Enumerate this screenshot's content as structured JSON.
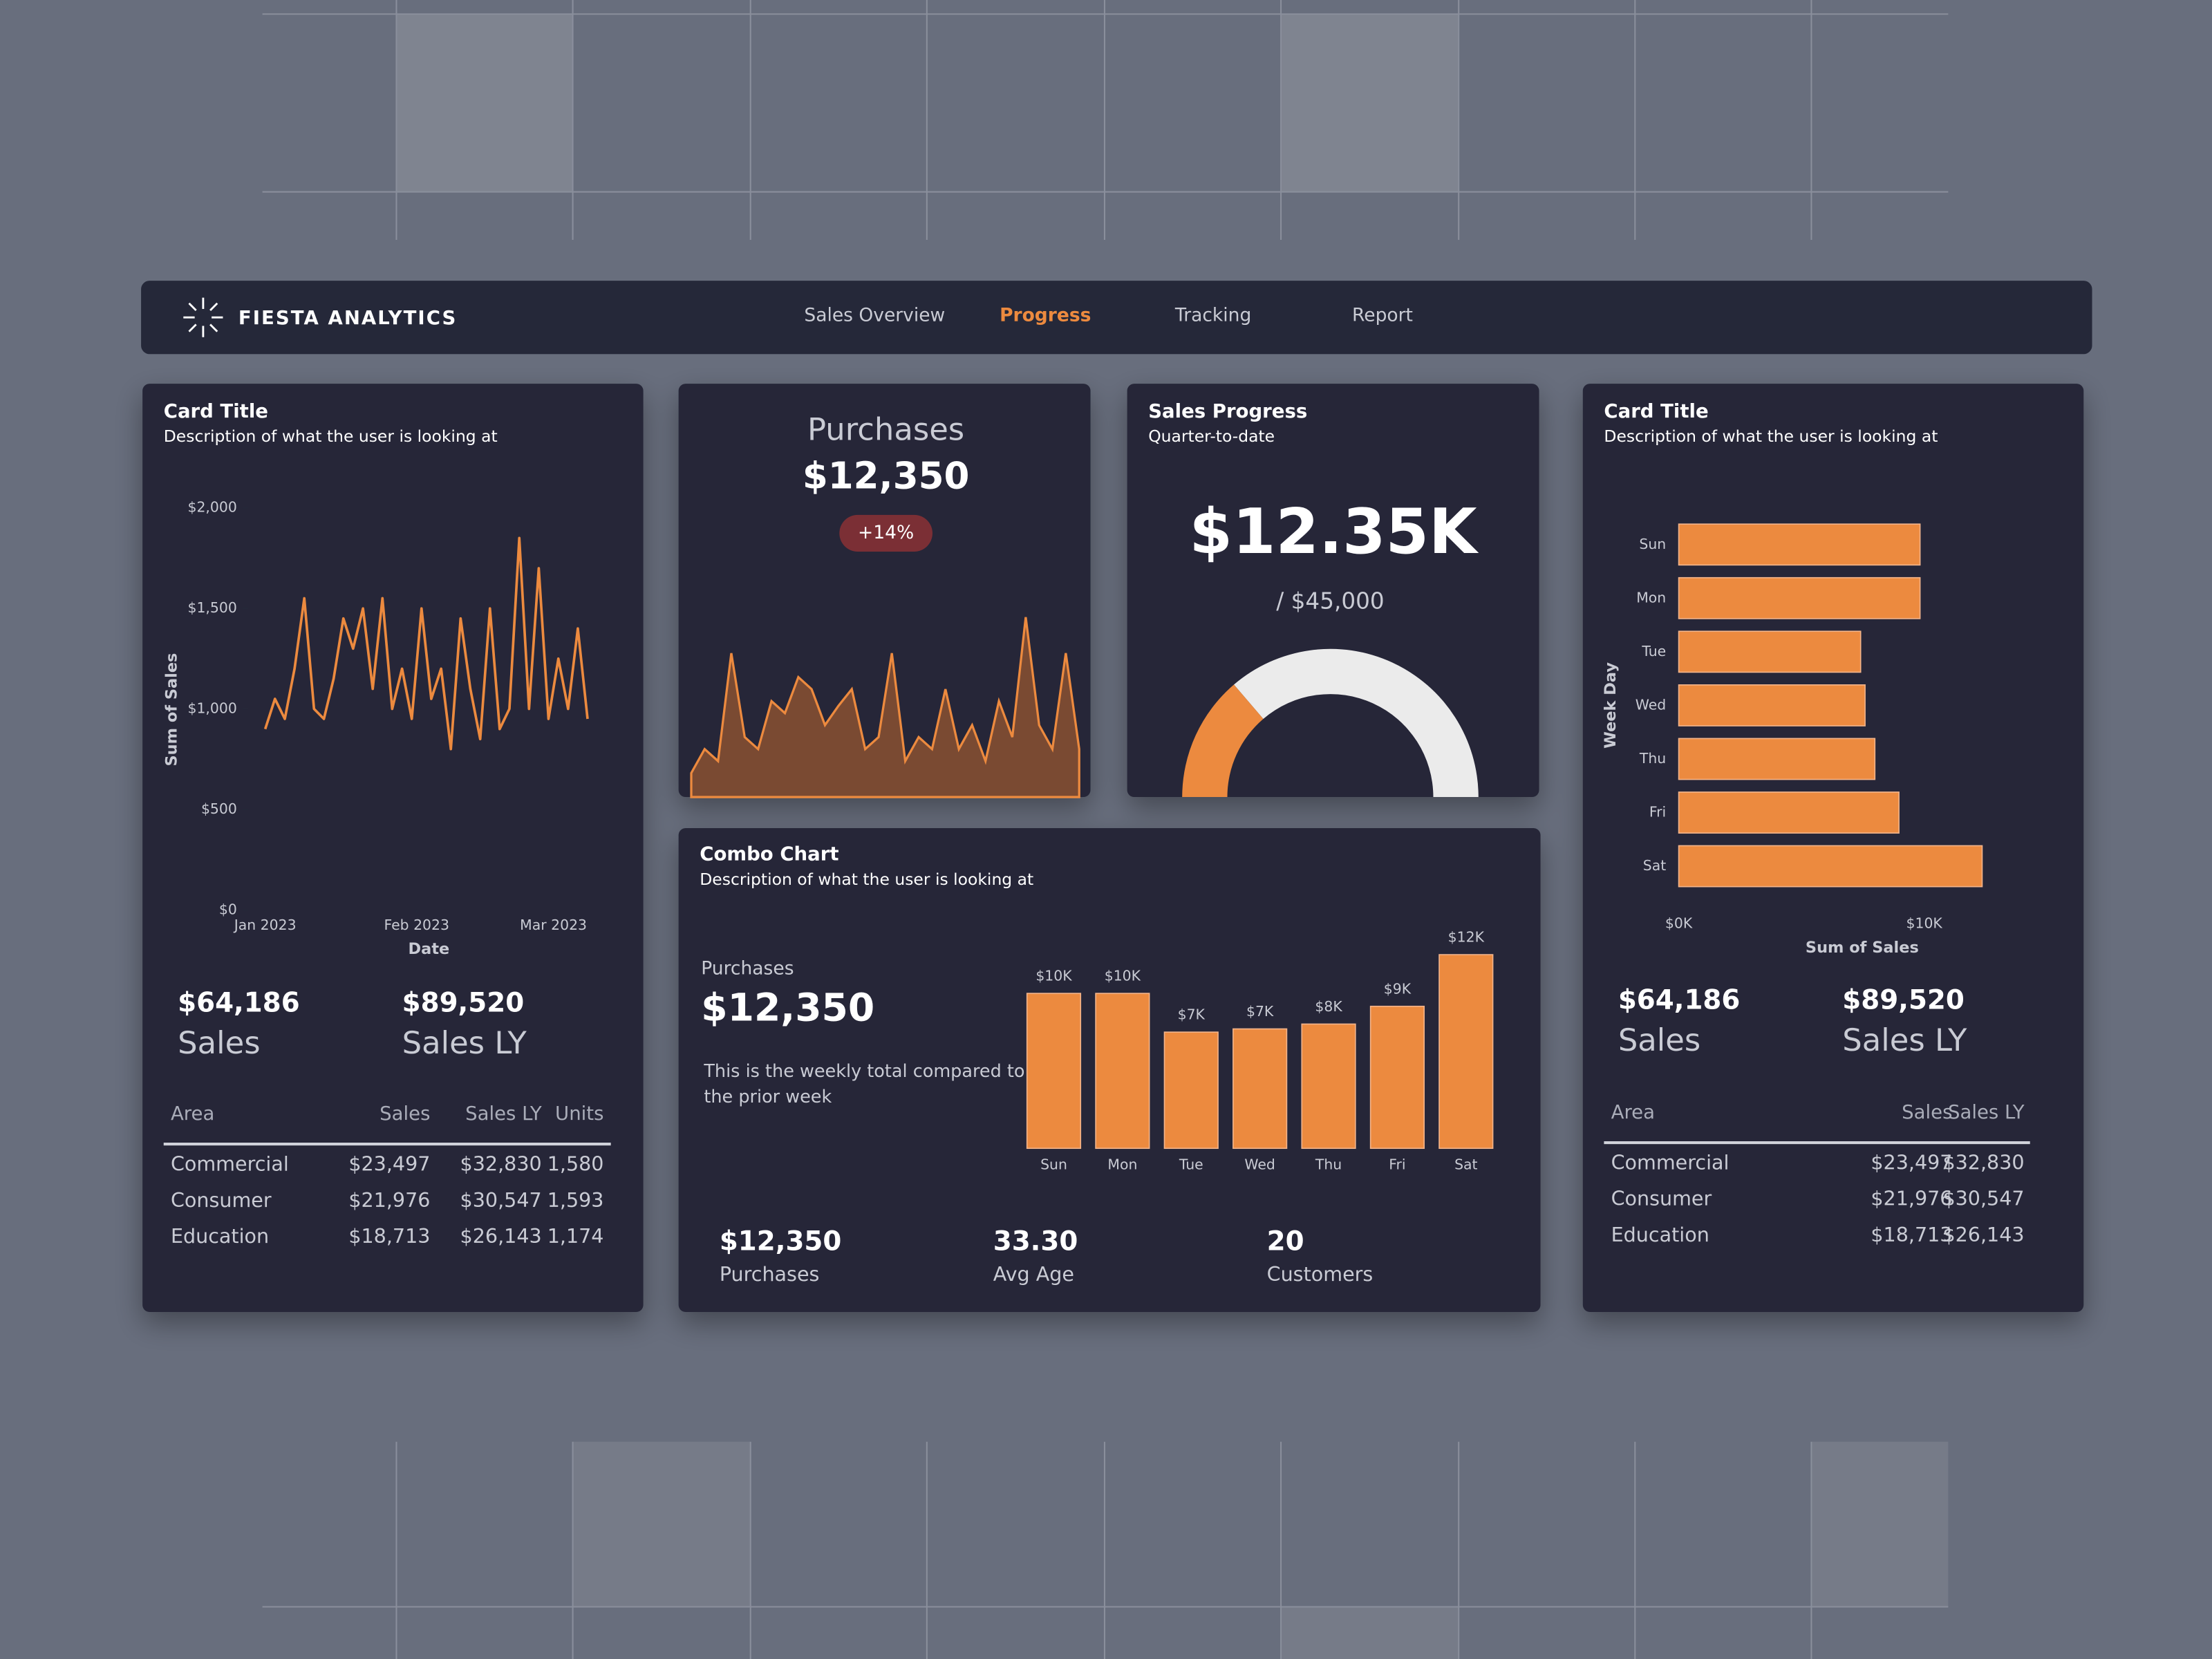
{
  "nav": {
    "brand": "FIESTA ANALYTICS",
    "items": [
      "Sales Overview",
      "Progress",
      "Tracking",
      "Report"
    ],
    "active": 1
  },
  "sales_card": {
    "title": "Card Title",
    "description": "Description of what the user is looking at",
    "chart_data": {
      "type": "line",
      "x_label": "Date",
      "y_label": "Sum of Sales",
      "color": "#ec8a3f",
      "x": [
        0,
        2,
        4,
        6,
        8,
        10,
        12,
        14,
        16,
        18,
        20,
        22,
        24,
        26,
        28,
        30,
        32,
        34,
        36,
        38,
        40,
        42,
        44,
        46,
        48,
        50,
        52,
        54,
        56,
        58,
        60,
        62,
        64,
        66
      ],
      "values": [
        900,
        1050,
        950,
        1200,
        1550,
        1000,
        950,
        1150,
        1450,
        1300,
        1500,
        1100,
        1550,
        1000,
        1200,
        950,
        1500,
        1050,
        1200,
        800,
        1450,
        1100,
        850,
        1500,
        900,
        1000,
        1850,
        1000,
        1700,
        950,
        1250,
        1000,
        1400,
        950
      ],
      "xlim": [
        0,
        67
      ],
      "xticks": [
        {
          "value": 0,
          "label": "Jan 2023"
        },
        {
          "value": 31,
          "label": "Feb 2023"
        },
        {
          "value": 59,
          "label": "Mar 2023"
        }
      ],
      "ylim": [
        0,
        2000
      ],
      "yticks": [
        {
          "value": 0,
          "label": "$0"
        },
        {
          "value": 500,
          "label": "$500"
        },
        {
          "value": 1000,
          "label": "$1,000"
        },
        {
          "value": 1500,
          "label": "$1,500"
        },
        {
          "value": 2000,
          "label": "$2,000"
        }
      ]
    },
    "kpis": [
      {
        "value": "$64,186",
        "label": "Sales"
      },
      {
        "value": "$89,520",
        "label": "Sales LY"
      }
    ],
    "table": {
      "columns": [
        "Area",
        "Sales",
        "Sales LY",
        "Units"
      ],
      "rows": [
        [
          "Commercial",
          "$23,497",
          "$32,830",
          "1,580"
        ],
        [
          "Consumer",
          "$21,976",
          "$30,547",
          "1,593"
        ],
        [
          "Education",
          "$18,713",
          "$26,143",
          "1,174"
        ]
      ]
    }
  },
  "purchases_card": {
    "title": "Purchases",
    "value": "$12,350",
    "badge": "+14%",
    "chart_data": {
      "type": "area",
      "color": "#ec8a3f",
      "ylim": [
        0,
        100
      ],
      "values": [
        10,
        20,
        15,
        60,
        25,
        20,
        40,
        35,
        50,
        45,
        30,
        38,
        45,
        20,
        25,
        60,
        15,
        25,
        20,
        45,
        20,
        30,
        15,
        40,
        25,
        75,
        30,
        20,
        60,
        20
      ]
    }
  },
  "progress_card": {
    "title": "Sales Progress",
    "subtitle": "Quarter-to-date",
    "chart_data": {
      "type": "gauge",
      "value": 12350,
      "value_label": "$12.35K",
      "max": 45000,
      "max_label": "/ $45,000",
      "color": "#ec8a3f",
      "track_color": "#ebebeb"
    }
  },
  "combo_card": {
    "title": "Combo Chart",
    "description": "Description of what the user is looking at",
    "metric": "Purchases",
    "value": "$12,350",
    "note": "This is the weekly total compared to the prior week",
    "chart_data": {
      "type": "bar",
      "color": "#ec8a3f",
      "categories": [
        "Sun",
        "Mon",
        "Tue",
        "Wed",
        "Thu",
        "Fri",
        "Sat"
      ],
      "values": [
        9600,
        9600,
        7200,
        7400,
        7700,
        8800,
        12000
      ],
      "value_labels": [
        "$10K",
        "$10K",
        "$7K",
        "$7K",
        "$8K",
        "$9K",
        "$12K"
      ],
      "ylim": [
        0,
        12500
      ]
    },
    "stats": [
      {
        "value": "$12,350",
        "label": "Purchases"
      },
      {
        "value": "33.30",
        "label": "Avg Age"
      },
      {
        "value": "20",
        "label": "Customers"
      }
    ]
  },
  "weekday_card": {
    "title": "Card Title",
    "description": "Description of what the user is looking at",
    "chart_data": {
      "type": "hbar",
      "color": "#ec8a3f",
      "x_label": "Sum of Sales",
      "y_label": "Week Day",
      "categories": [
        "Sun",
        "Mon",
        "Tue",
        "Wed",
        "Thu",
        "Fri",
        "Sat"
      ],
      "values": [
        9830,
        9830,
        7410,
        7590,
        7990,
        8970,
        12360
      ],
      "xlim": [
        0,
        15000
      ],
      "xticks": [
        {
          "value": 0,
          "label": "$0K"
        },
        {
          "value": 10000,
          "label": "$10K"
        }
      ]
    },
    "kpis": [
      {
        "value": "$64,186",
        "label": "Sales"
      },
      {
        "value": "$89,520",
        "label": "Sales LY"
      }
    ],
    "table": {
      "columns": [
        "Area",
        "Sales",
        "Sales LY"
      ],
      "rows": [
        [
          "Commercial",
          "$23,497",
          "$32,830"
        ],
        [
          "Consumer",
          "$21,976",
          "$30,547"
        ],
        [
          "Education",
          "$18,713",
          "$26,143"
        ]
      ]
    }
  }
}
